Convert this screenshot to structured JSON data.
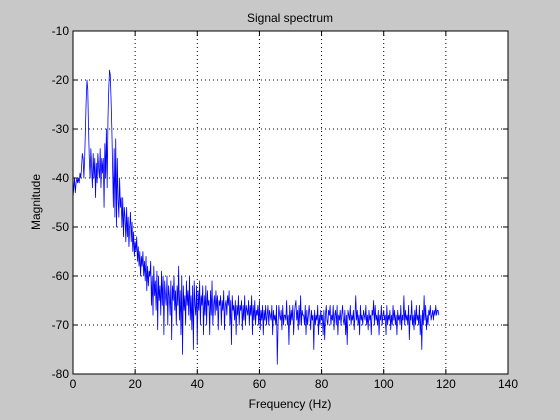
{
  "colors": {
    "figure_background": "#c8c8c8",
    "axes_background": "#ffffff",
    "series": "#0000ff",
    "grid": "#000000"
  },
  "chart_data": {
    "type": "line",
    "title": "Signal spectrum",
    "xlabel": "Frequency (Hz)",
    "ylabel": "Magnitude",
    "xlim": [
      0,
      140
    ],
    "ylim": [
      -80,
      -10
    ],
    "xticks": [
      0,
      20,
      40,
      60,
      80,
      100,
      120,
      140
    ],
    "yticks": [
      -80,
      -70,
      -60,
      -50,
      -40,
      -30,
      -20,
      -10
    ],
    "grid": "on (dotted)",
    "legend": "none",
    "series": [
      {
        "color": "#0000ff",
        "x_step": 0.25,
        "x_start": 0,
        "values": [
          -44,
          -42,
          -40,
          -43,
          -41,
          -40,
          -41,
          -40,
          -41,
          -39,
          -40,
          -38,
          -35,
          -36,
          -40,
          -36,
          -30,
          -24,
          -20,
          -22,
          -30,
          -36,
          -40,
          -34,
          -38,
          -42,
          -35,
          -40,
          -36,
          -44,
          -37,
          -41,
          -35,
          -38,
          -40,
          -34,
          -42,
          -36,
          -39,
          -36,
          -46,
          -33,
          -40,
          -30,
          -42,
          -28,
          -22,
          -18,
          -19,
          -24,
          -30,
          -38,
          -46,
          -34,
          -48,
          -32,
          -50,
          -36,
          -44,
          -48,
          -40,
          -46,
          -44,
          -50,
          -44,
          -52,
          -46,
          -48,
          -53,
          -46,
          -52,
          -48,
          -54,
          -50,
          -47,
          -53,
          -49,
          -55,
          -51,
          -56,
          -53,
          -55,
          -52,
          -57,
          -54,
          -58,
          -55,
          -60,
          -56,
          -58,
          -55,
          -60,
          -57,
          -61,
          -56,
          -63,
          -58,
          -62,
          -59,
          -60,
          -57,
          -66,
          -60,
          -68,
          -58,
          -64,
          -61,
          -67,
          -59,
          -71,
          -60,
          -65,
          -62,
          -68,
          -59,
          -66,
          -60,
          -72,
          -61,
          -64,
          -66,
          -60,
          -70,
          -62,
          -64,
          -68,
          -61,
          -73,
          -62,
          -65,
          -60,
          -67,
          -63,
          -70,
          -62,
          -66,
          -58,
          -69,
          -63,
          -72,
          -60,
          -76,
          -62,
          -67,
          -64,
          -70,
          -61,
          -66,
          -63,
          -68,
          -60,
          -69,
          -64,
          -71,
          -62,
          -75,
          -61,
          -66,
          -68,
          -62,
          -74,
          -63,
          -67,
          -61,
          -70,
          -64,
          -66,
          -62,
          -72,
          -64,
          -68,
          -62,
          -70,
          -63,
          -66,
          -65,
          -72,
          -63,
          -68,
          -61,
          -70,
          -66,
          -64,
          -68,
          -63,
          -67,
          -64,
          -71,
          -65,
          -66,
          -64,
          -70,
          -65,
          -67,
          -63,
          -71,
          -66,
          -65,
          -68,
          -64,
          -66,
          -63,
          -70,
          -65,
          -74,
          -64,
          -67,
          -66,
          -69,
          -65,
          -72,
          -66,
          -68,
          -64,
          -70,
          -66,
          -67,
          -65,
          -71,
          -66,
          -69,
          -64,
          -70,
          -66,
          -67,
          -68,
          -65,
          -70,
          -66,
          -68,
          -64,
          -72,
          -66,
          -69,
          -65,
          -70,
          -67,
          -68,
          -66,
          -70,
          -65,
          -71,
          -67,
          -69,
          -66,
          -72,
          -67,
          -69,
          -66,
          -70,
          -68,
          -66,
          -70,
          -67,
          -68,
          -69,
          -66,
          -72,
          -67,
          -69,
          -68,
          -70,
          -66,
          -78,
          -70,
          -66,
          -68,
          -69,
          -67,
          -71,
          -66,
          -70,
          -68,
          -68,
          -69,
          -65,
          -70,
          -68,
          -74,
          -66,
          -70,
          -67,
          -69,
          -66,
          -72,
          -68,
          -66,
          -65,
          -69,
          -67,
          -71,
          -66,
          -70,
          -64,
          -70,
          -67,
          -68,
          -68,
          -70,
          -66,
          -72,
          -67,
          -70,
          -68,
          -66,
          -68,
          -71,
          -67,
          -69,
          -68,
          -75,
          -67,
          -70,
          -68,
          -69,
          -66,
          -72,
          -68,
          -70,
          -67,
          -69,
          -68,
          -72,
          -67,
          -73,
          -68,
          -66,
          -69,
          -70,
          -67,
          -68,
          -66,
          -70,
          -68,
          -69,
          -66,
          -71,
          -68,
          -67,
          -70,
          -66,
          -72,
          -68,
          -69,
          -67,
          -70,
          -68,
          -66,
          -69,
          -70,
          -67,
          -72,
          -68,
          -74,
          -67,
          -68,
          -69,
          -66,
          -70,
          -68,
          -69,
          -67,
          -71,
          -68,
          -64,
          -69,
          -67,
          -70,
          -68,
          -72,
          -66,
          -69,
          -68,
          -70,
          -67,
          -68,
          -69,
          -66,
          -70,
          -68,
          -71,
          -67,
          -69,
          -68,
          -72,
          -67,
          -68,
          -65,
          -70,
          -66,
          -69,
          -68,
          -70,
          -67,
          -72,
          -68,
          -69,
          -66,
          -70,
          -68,
          -67,
          -69,
          -68,
          -72,
          -66,
          -70,
          -68,
          -69,
          -67,
          -71,
          -68,
          -70,
          -66,
          -69,
          -67,
          -70,
          -68,
          -72,
          -67,
          -69,
          -68,
          -70,
          -66,
          -71,
          -68,
          -69,
          -64,
          -70,
          -67,
          -69,
          -68,
          -70,
          -66,
          -73,
          -68,
          -69,
          -65,
          -70,
          -68,
          -71,
          -67,
          -70,
          -66,
          -69,
          -68,
          -70,
          -66,
          -72,
          -68,
          -75,
          -67,
          -70,
          -64,
          -69,
          -66,
          -71,
          -68,
          -70,
          -67,
          -68,
          -66,
          -69,
          -68,
          -67,
          -69,
          -67,
          -68,
          -66,
          -68,
          -67,
          -67,
          -68
        ]
      }
    ]
  }
}
